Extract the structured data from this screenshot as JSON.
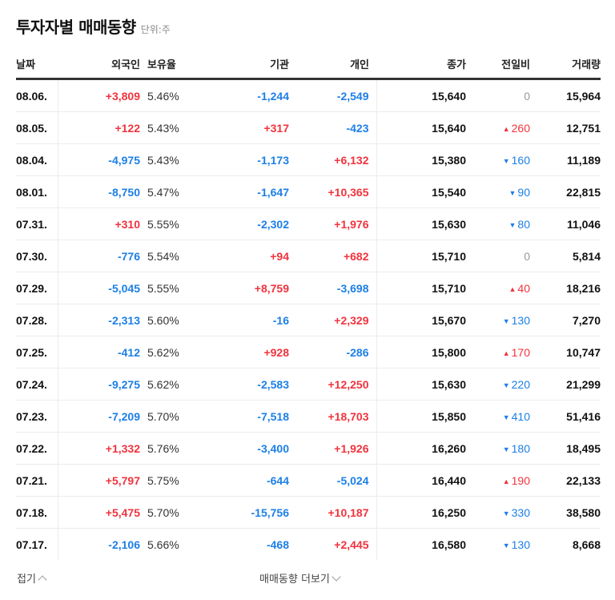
{
  "header": {
    "title": "투자자별 매매동향",
    "unit": "단위:주"
  },
  "columns": [
    "날짜",
    "외국인",
    "보유율",
    "기관",
    "개인",
    "종가",
    "전일비",
    "거래량"
  ],
  "rows": [
    {
      "date": "08.06.",
      "foreign": "+3,809",
      "foreign_dir": "up",
      "ratio": "5.46%",
      "inst": "-1,244",
      "inst_dir": "down",
      "indiv": "-2,549",
      "indiv_dir": "down",
      "close": "15,640",
      "change": "0",
      "change_dir": "flat",
      "volume": "15,964"
    },
    {
      "date": "08.05.",
      "foreign": "+122",
      "foreign_dir": "up",
      "ratio": "5.43%",
      "inst": "+317",
      "inst_dir": "up",
      "indiv": "-423",
      "indiv_dir": "down",
      "close": "15,640",
      "change": "260",
      "change_dir": "up",
      "volume": "12,751"
    },
    {
      "date": "08.04.",
      "foreign": "-4,975",
      "foreign_dir": "down",
      "ratio": "5.43%",
      "inst": "-1,173",
      "inst_dir": "down",
      "indiv": "+6,132",
      "indiv_dir": "up",
      "close": "15,380",
      "change": "160",
      "change_dir": "down",
      "volume": "11,189"
    },
    {
      "date": "08.01.",
      "foreign": "-8,750",
      "foreign_dir": "down",
      "ratio": "5.47%",
      "inst": "-1,647",
      "inst_dir": "down",
      "indiv": "+10,365",
      "indiv_dir": "up",
      "close": "15,540",
      "change": "90",
      "change_dir": "down",
      "volume": "22,815"
    },
    {
      "date": "07.31.",
      "foreign": "+310",
      "foreign_dir": "up",
      "ratio": "5.55%",
      "inst": "-2,302",
      "inst_dir": "down",
      "indiv": "+1,976",
      "indiv_dir": "up",
      "close": "15,630",
      "change": "80",
      "change_dir": "down",
      "volume": "11,046"
    },
    {
      "date": "07.30.",
      "foreign": "-776",
      "foreign_dir": "down",
      "ratio": "5.54%",
      "inst": "+94",
      "inst_dir": "up",
      "indiv": "+682",
      "indiv_dir": "up",
      "close": "15,710",
      "change": "0",
      "change_dir": "flat",
      "volume": "5,814"
    },
    {
      "date": "07.29.",
      "foreign": "-5,045",
      "foreign_dir": "down",
      "ratio": "5.55%",
      "inst": "+8,759",
      "inst_dir": "up",
      "indiv": "-3,698",
      "indiv_dir": "down",
      "close": "15,710",
      "change": "40",
      "change_dir": "up",
      "volume": "18,216"
    },
    {
      "date": "07.28.",
      "foreign": "-2,313",
      "foreign_dir": "down",
      "ratio": "5.60%",
      "inst": "-16",
      "inst_dir": "down",
      "indiv": "+2,329",
      "indiv_dir": "up",
      "close": "15,670",
      "change": "130",
      "change_dir": "down",
      "volume": "7,270"
    },
    {
      "date": "07.25.",
      "foreign": "-412",
      "foreign_dir": "down",
      "ratio": "5.62%",
      "inst": "+928",
      "inst_dir": "up",
      "indiv": "-286",
      "indiv_dir": "down",
      "close": "15,800",
      "change": "170",
      "change_dir": "up",
      "volume": "10,747"
    },
    {
      "date": "07.24.",
      "foreign": "-9,275",
      "foreign_dir": "down",
      "ratio": "5.62%",
      "inst": "-2,583",
      "inst_dir": "down",
      "indiv": "+12,250",
      "indiv_dir": "up",
      "close": "15,630",
      "change": "220",
      "change_dir": "down",
      "volume": "21,299"
    },
    {
      "date": "07.23.",
      "foreign": "-7,209",
      "foreign_dir": "down",
      "ratio": "5.70%",
      "inst": "-7,518",
      "inst_dir": "down",
      "indiv": "+18,703",
      "indiv_dir": "up",
      "close": "15,850",
      "change": "410",
      "change_dir": "down",
      "volume": "51,416"
    },
    {
      "date": "07.22.",
      "foreign": "+1,332",
      "foreign_dir": "up",
      "ratio": "5.76%",
      "inst": "-3,400",
      "inst_dir": "down",
      "indiv": "+1,926",
      "indiv_dir": "up",
      "close": "16,260",
      "change": "180",
      "change_dir": "down",
      "volume": "18,495"
    },
    {
      "date": "07.21.",
      "foreign": "+5,797",
      "foreign_dir": "up",
      "ratio": "5.75%",
      "inst": "-644",
      "inst_dir": "down",
      "indiv": "-5,024",
      "indiv_dir": "down",
      "close": "16,440",
      "change": "190",
      "change_dir": "up",
      "volume": "22,133"
    },
    {
      "date": "07.18.",
      "foreign": "+5,475",
      "foreign_dir": "up",
      "ratio": "5.70%",
      "inst": "-15,756",
      "inst_dir": "down",
      "indiv": "+10,187",
      "indiv_dir": "up",
      "close": "16,250",
      "change": "330",
      "change_dir": "down",
      "volume": "38,580"
    },
    {
      "date": "07.17.",
      "foreign": "-2,106",
      "foreign_dir": "down",
      "ratio": "5.66%",
      "inst": "-468",
      "inst_dir": "down",
      "indiv": "+2,445",
      "indiv_dir": "up",
      "close": "16,580",
      "change": "130",
      "change_dir": "down",
      "volume": "8,668"
    }
  ],
  "footer": {
    "collapse_label": "접기",
    "more_label": "매매동향 더보기"
  },
  "colors": {
    "up": "#f0333d",
    "down": "#1c7fe6",
    "flat": "#999999"
  },
  "icons": {
    "up_triangle": "▲",
    "down_triangle": "▼"
  }
}
